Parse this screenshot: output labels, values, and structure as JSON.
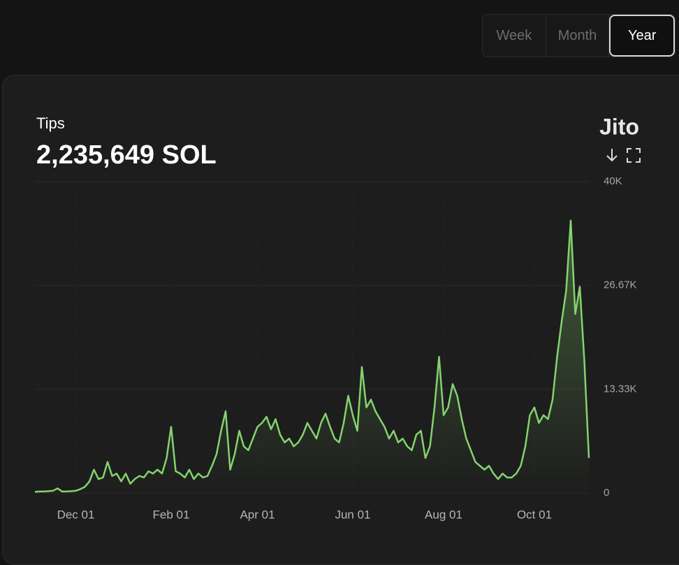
{
  "tabs": [
    "Week",
    "Month",
    "Year"
  ],
  "selected_tab": 2,
  "brand": "Jito",
  "chart_data": {
    "type": "area",
    "title": "Tips",
    "subtitle": "2,235,649 SOL",
    "categories": [
      null,
      null,
      null,
      null,
      null,
      null,
      null,
      null,
      null,
      "Dec 01",
      null,
      null,
      null,
      null,
      null,
      null,
      null,
      null,
      null,
      null,
      null,
      null,
      null,
      null,
      null,
      null,
      null,
      null,
      null,
      null,
      "Feb 01",
      null,
      null,
      null,
      null,
      null,
      null,
      null,
      null,
      null,
      null,
      null,
      null,
      null,
      null,
      null,
      null,
      null,
      null,
      "Apr 01",
      null,
      null,
      null,
      null,
      null,
      null,
      null,
      null,
      null,
      null,
      null,
      null,
      null,
      null,
      null,
      null,
      null,
      null,
      null,
      null,
      "Jun 01",
      null,
      null,
      null,
      null,
      null,
      null,
      null,
      null,
      null,
      null,
      null,
      null,
      null,
      null,
      null,
      null,
      null,
      null,
      null,
      "Aug 01",
      null,
      null,
      null,
      null,
      null,
      null,
      null,
      null,
      null,
      null,
      null,
      null,
      null,
      null,
      null,
      null,
      null,
      null,
      null,
      "Oct 01",
      null,
      null,
      null,
      null,
      null,
      null,
      null,
      null,
      null,
      null,
      null,
      null
    ],
    "series": [
      {
        "color": "#84d36e",
        "values": [
          150,
          200,
          200,
          250,
          300,
          600,
          200,
          200,
          250,
          300,
          500,
          800,
          1500,
          3000,
          1800,
          2000,
          4000,
          2200,
          2500,
          1500,
          2500,
          1200,
          1800,
          2200,
          2000,
          2800,
          2500,
          3000,
          2500,
          4500,
          8500,
          2800,
          2500,
          2000,
          3000,
          1800,
          2500,
          2000,
          2200,
          3500,
          5000,
          8000,
          10500,
          3000,
          5000,
          8000,
          6000,
          5500,
          7000,
          8500,
          9000,
          9800,
          8200,
          9500,
          7500,
          6500,
          7000,
          6000,
          6500,
          7500,
          9000,
          8000,
          7000,
          9000,
          10200,
          8500,
          7000,
          6500,
          9000,
          12500,
          10000,
          8000,
          16200,
          11000,
          12000,
          10500,
          9500,
          8500,
          7000,
          8000,
          6500,
          7000,
          6000,
          5500,
          7500,
          8000,
          4500,
          6000,
          11000,
          17500,
          10000,
          11000,
          14000,
          12500,
          9500,
          7000,
          5500,
          4000,
          3500,
          3000,
          3500,
          2500,
          1800,
          2500,
          2000,
          2000,
          2500,
          3500,
          6000,
          10000,
          11000,
          9000,
          10000,
          9500,
          12000,
          17500,
          22000,
          26000,
          35000,
          23000,
          26500,
          17000,
          4500
        ]
      }
    ],
    "ylim": [
      0,
      40000
    ],
    "yticks": [
      {
        "value": 0,
        "label": "0"
      },
      {
        "value": 13333.33,
        "label": "13.33K"
      },
      {
        "value": 26666.67,
        "label": "26.67K"
      },
      {
        "value": 40000,
        "label": "40K"
      }
    ],
    "grid": true
  }
}
